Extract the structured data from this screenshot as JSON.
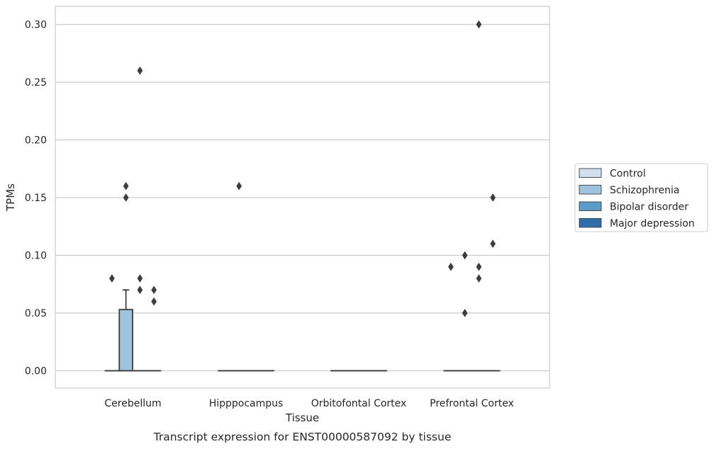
{
  "chart_data": {
    "type": "box",
    "title": "",
    "caption": "Transcript expression for ENST00000587092 by tissue",
    "xlabel": "Tissue",
    "ylabel": "TPMs",
    "ylim": [
      -0.015,
      0.315
    ],
    "yticks": [
      0.0,
      0.05,
      0.1,
      0.15,
      0.2,
      0.25,
      0.3
    ],
    "ytick_labels": [
      "0.00",
      "0.05",
      "0.10",
      "0.15",
      "0.20",
      "0.25",
      "0.30"
    ],
    "grid": "horizontal",
    "legend_position": "right",
    "categories": [
      "Cerebellum",
      "Hipppocampus",
      "Orbitofontal Cortex",
      "Prefrontal Cortex"
    ],
    "series": [
      {
        "name": "Control",
        "color": "#d0e0f0",
        "boxes": [
          {
            "category": "Cerebellum",
            "q1": 0,
            "median": 0,
            "q3": 0,
            "whisker_low": 0,
            "whisker_high": 0,
            "outliers": [
              0.08
            ]
          },
          {
            "category": "Hipppocampus",
            "q1": 0,
            "median": 0,
            "q3": 0,
            "whisker_low": 0,
            "whisker_high": 0,
            "outliers": []
          },
          {
            "category": "Orbitofontal Cortex",
            "q1": 0,
            "median": 0,
            "q3": 0,
            "whisker_low": 0,
            "whisker_high": 0,
            "outliers": []
          },
          {
            "category": "Prefrontal Cortex",
            "q1": 0,
            "median": 0,
            "q3": 0,
            "whisker_low": 0,
            "whisker_high": 0,
            "outliers": [
              0.09
            ]
          }
        ]
      },
      {
        "name": "Schizophrenia",
        "color": "#9dc3de",
        "boxes": [
          {
            "category": "Cerebellum",
            "q1": 0,
            "median": 0,
            "q3": 0.053,
            "whisker_low": 0,
            "whisker_high": 0.07,
            "outliers": [
              0.16,
              0.15
            ]
          },
          {
            "category": "Hipppocampus",
            "q1": 0,
            "median": 0,
            "q3": 0,
            "whisker_low": 0,
            "whisker_high": 0,
            "outliers": [
              0.16
            ]
          },
          {
            "category": "Orbitofontal Cortex",
            "q1": 0,
            "median": 0,
            "q3": 0,
            "whisker_low": 0,
            "whisker_high": 0,
            "outliers": []
          },
          {
            "category": "Prefrontal Cortex",
            "q1": 0,
            "median": 0,
            "q3": 0,
            "whisker_low": 0,
            "whisker_high": 0,
            "outliers": [
              0.1,
              0.05
            ]
          }
        ]
      },
      {
        "name": "Bipolar disorder",
        "color": "#5a9bc9",
        "boxes": [
          {
            "category": "Cerebellum",
            "q1": 0,
            "median": 0,
            "q3": 0,
            "whisker_low": 0,
            "whisker_high": 0,
            "outliers": [
              0.26,
              0.08,
              0.07
            ]
          },
          {
            "category": "Hipppocampus",
            "q1": 0,
            "median": 0,
            "q3": 0,
            "whisker_low": 0,
            "whisker_high": 0,
            "outliers": []
          },
          {
            "category": "Orbitofontal Cortex",
            "q1": 0,
            "median": 0,
            "q3": 0,
            "whisker_low": 0,
            "whisker_high": 0,
            "outliers": []
          },
          {
            "category": "Prefrontal Cortex",
            "q1": 0,
            "median": 0,
            "q3": 0,
            "whisker_low": 0,
            "whisker_high": 0,
            "outliers": [
              0.3,
              0.09,
              0.08
            ]
          }
        ]
      },
      {
        "name": "Major depression",
        "color": "#2f6ea8",
        "boxes": [
          {
            "category": "Cerebellum",
            "q1": 0,
            "median": 0,
            "q3": 0,
            "whisker_low": 0,
            "whisker_high": 0,
            "outliers": [
              0.07,
              0.06
            ]
          },
          {
            "category": "Hipppocampus",
            "q1": 0,
            "median": 0,
            "q3": 0,
            "whisker_low": 0,
            "whisker_high": 0,
            "outliers": []
          },
          {
            "category": "Orbitofontal Cortex",
            "q1": 0,
            "median": 0,
            "q3": 0,
            "whisker_low": 0,
            "whisker_high": 0,
            "outliers": []
          },
          {
            "category": "Prefrontal Cortex",
            "q1": 0,
            "median": 0,
            "q3": 0,
            "whisker_low": 0,
            "whisker_high": 0,
            "outliers": [
              0.15,
              0.11
            ]
          }
        ]
      }
    ]
  }
}
